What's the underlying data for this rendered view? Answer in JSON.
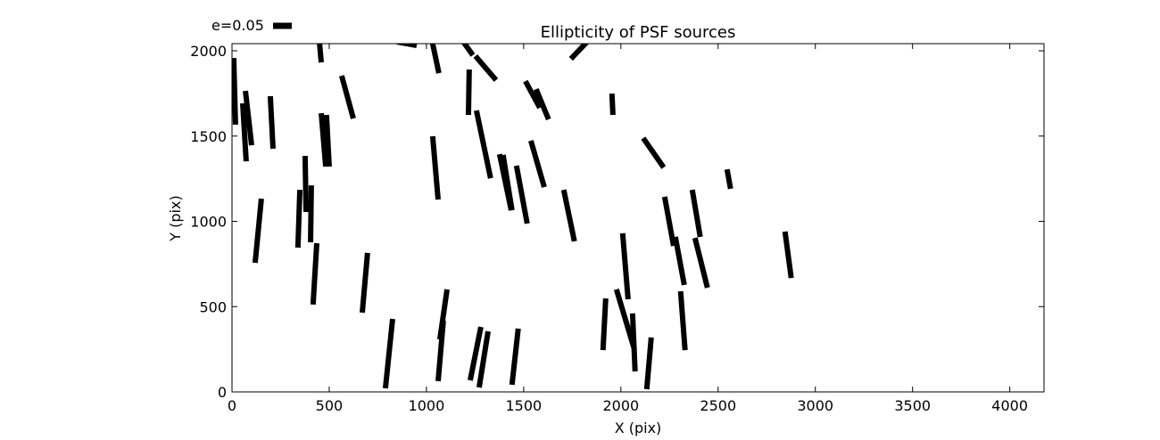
{
  "chart_data": {
    "type": "whisker",
    "title": "Ellipticity of PSF sources",
    "x_label": "X (pix)",
    "y_label": "Y (pix)",
    "key_label": "e=0.05",
    "color": "#000000",
    "xlim": [
      0,
      4176
    ],
    "ylim": [
      0,
      2042
    ],
    "xticks": [
      0,
      500,
      1000,
      1500,
      2000,
      2500,
      3000,
      3500,
      4000
    ],
    "yticks": [
      0,
      500,
      1000,
      1500,
      2000
    ],
    "x_start": [
      9,
      450,
      849,
      1028,
      1183,
      1252,
      1743,
      564,
      69,
      55,
      197,
      1220,
      1509,
      1564,
      1954,
      459,
      486,
      1257,
      1032,
      1537,
      2115,
      1376,
      1394,
      1463,
      2546,
      376,
      349,
      408,
      151,
      1706,
      2225,
      2367,
      436,
      697,
      2009,
      2280,
      2381,
      2844,
      1106,
      826,
      1087,
      1280,
      1317,
      1472,
      1922,
      1977,
      2060,
      2307,
      2156
    ],
    "y_start": [
      1958,
      2047,
      2052,
      2063,
      2063,
      1969,
      1953,
      1854,
      1765,
      1692,
      1734,
      1890,
      1822,
      1775,
      1749,
      1634,
      1624,
      1650,
      1499,
      1473,
      1488,
      1394,
      1389,
      1326,
      1305,
      1384,
      1185,
      1211,
      1133,
      1185,
      1144,
      1185,
      872,
      815,
      930,
      909,
      903,
      940,
      601,
      428,
      418,
      381,
      355,
      371,
      548,
      601,
      460,
      590,
      319
    ],
    "x_end": [
      18,
      459,
      950,
      1064,
      1239,
      1358,
      1835,
      624,
      101,
      73,
      211,
      1216,
      1583,
      1628,
      1959,
      482,
      500,
      1330,
      1060,
      1606,
      2220,
      1436,
      1440,
      1518,
      2564,
      381,
      339,
      404,
      119,
      1761,
      2271,
      2408,
      417,
      670,
      2037,
      2326,
      2445,
      2876,
      1069,
      789,
      1060,
      1225,
      1271,
      1440,
      1908,
      2069,
      2073,
      2330,
      2133
    ],
    "y_end": [
      1567,
      1932,
      2031,
      1869,
      1974,
      1828,
      2063,
      1603,
      1446,
      1352,
      1426,
      1624,
      1666,
      1598,
      1624,
      1321,
      1321,
      1253,
      1128,
      1201,
      1316,
      1065,
      1065,
      987,
      1191,
      1055,
      846,
      877,
      757,
      883,
      856,
      909,
      512,
      465,
      543,
      627,
      611,
      668,
      308,
      21,
      63,
      68,
      26,
      42,
      245,
      251,
      120,
      245,
      16
    ]
  }
}
